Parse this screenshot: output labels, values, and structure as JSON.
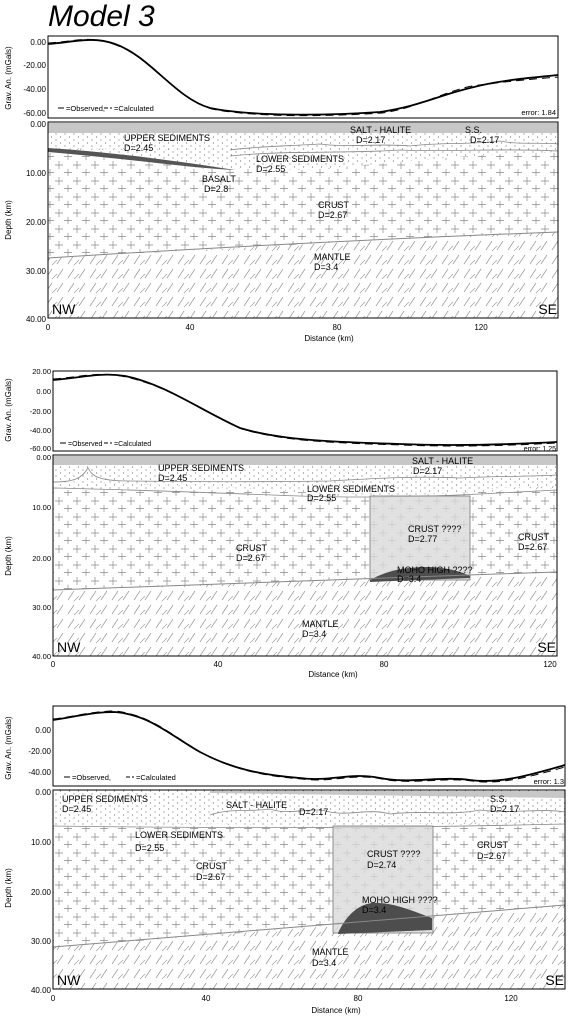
{
  "title": "Model 3",
  "colors": {
    "salt": "#c7c7c7",
    "basalt": "#555555",
    "moho_high": "#4d4d4d",
    "crust_box": "#d9d9d9",
    "line": "#888888"
  },
  "panels": [
    {
      "id": "a",
      "grav": {
        "ylabel": "Grav. An. (mGals)",
        "ticks": [
          "0.00",
          "-20.00",
          "-40.00",
          "-60.00"
        ],
        "legend_observed": "=Observed,",
        "legend_calculated": "=Calculated",
        "error": "error: 1.84"
      },
      "section": {
        "ylabel": "Depth (km)",
        "yticks": [
          "0.00",
          "10.00",
          "20.00",
          "30.00",
          "40.00"
        ],
        "xticks": [
          "0",
          "40",
          "80",
          "120"
        ],
        "xlabel": "Distance (km)",
        "nw": "NW",
        "se": "SE",
        "labels": {
          "upper_sed": "UPPER SEDIMENTS",
          "upper_sed_d": "D=2.45",
          "salt": "SALT - HALITE",
          "salt_d": "D=2.17",
          "ss": "S.S.",
          "ss_d": "D=2.17",
          "lower_sed": "LOWER SEDIMENTS",
          "lower_sed_d": "D=2.55",
          "basalt": "BASALT",
          "basalt_d": "D=2.8",
          "crust": "CRUST",
          "crust_d": "D=2.67",
          "mantle": "MANTLE",
          "mantle_d": "D=3.4"
        }
      }
    },
    {
      "id": "b",
      "grav": {
        "ylabel": "Grav. An. (mGals)",
        "ticks": [
          "20.00",
          "0.00",
          "-20.00",
          "-40.00",
          "-60.00"
        ],
        "legend_observed": "=Observed",
        "legend_calculated": "=Calculated",
        "error": "error: 1.25"
      },
      "section": {
        "ylabel": "Depth (km)",
        "yticks": [
          "0.00",
          "10.00",
          "20.00",
          "30.00",
          "40.00"
        ],
        "xticks": [
          "0",
          "40",
          "80",
          "120"
        ],
        "xlabel": "Distance (km)",
        "nw": "NW",
        "se": "SE",
        "labels": {
          "upper_sed": "UPPER SEDIMENTS",
          "upper_sed_d": "D=2.45",
          "salt": "SALT - HALITE",
          "salt_d": "D=2.17",
          "lower_sed": "LOWER SEDIMENTS",
          "lower_sed_d": "D=2.55",
          "crust_box": "CRUST ????",
          "crust_box_d": "D=2.77",
          "crust_l": "CRUST",
          "crust_l_d": "D=2.67",
          "crust_r": "CRUST",
          "crust_r_d": "D=2.67",
          "moho": "MOHO HIGH ????",
          "moho_d": "D=3.4",
          "mantle": "MANTLE",
          "mantle_d": "D=3.4"
        }
      }
    },
    {
      "id": "c",
      "grav": {
        "ylabel": "Grav. An. (mGals)",
        "ticks": [
          "0.00",
          "-20.00",
          "-40.00"
        ],
        "legend_observed": "=Observed,",
        "legend_calculated": "=Calculated",
        "error": "error: 1.3"
      },
      "section": {
        "ylabel": "Depth (km)",
        "yticks": [
          "0.00",
          "10.00",
          "20.00",
          "30.00",
          "40.00"
        ],
        "xticks": [
          "0",
          "40",
          "80",
          "120"
        ],
        "xlabel": "Distance (km)",
        "nw": "NW",
        "se": "SE",
        "labels": {
          "upper_sed": "UPPER SEDIMENTS",
          "upper_sed_d": "D=2.45",
          "salt": "SALT - HALITE",
          "salt_d": "D=2.17",
          "ss": "S.S.",
          "ss_d": "D=2.17",
          "lower_sed": "LOWER SEDIMENTS",
          "lower_sed_d": "D=2.55",
          "crust_box": "CRUST ????",
          "crust_box_d": "D=2.74",
          "crust_l": "CRUST",
          "crust_l_d": "D=2.67",
          "crust_r": "CRUST",
          "crust_r_d": "D=2.67",
          "moho": "MOHO HIGH ????",
          "moho_d": "D=3.4",
          "mantle": "MANTLE",
          "mantle_d": "D=3.4"
        }
      }
    }
  ]
}
